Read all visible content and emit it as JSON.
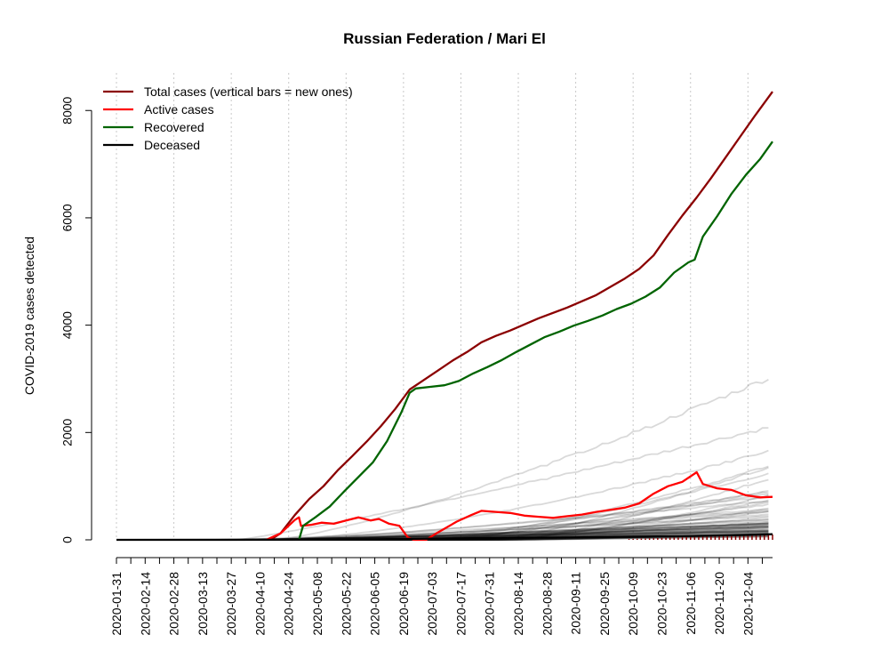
{
  "chart_data": {
    "type": "line",
    "title": "Russian Federation / Mari El",
    "ylabel": "COVID-2019 cases detected",
    "xlabel": "",
    "x_range": [
      "2020-01-31",
      "2020-12-16"
    ],
    "ylim": [
      0,
      8700
    ],
    "y_ticks": [
      0,
      2000,
      4000,
      6000,
      8000
    ],
    "x_ticks": [
      "2020-01-31",
      "2020-02-14",
      "2020-02-28",
      "2020-03-13",
      "2020-03-27",
      "2020-04-10",
      "2020-04-24",
      "2020-05-08",
      "2020-05-22",
      "2020-06-05",
      "2020-06-19",
      "2020-07-03",
      "2020-07-17",
      "2020-07-31",
      "2020-08-14",
      "2020-08-28",
      "2020-09-11",
      "2020-09-25",
      "2020-10-09",
      "2020-10-23",
      "2020-11-06",
      "2020-11-20",
      "2020-12-04"
    ],
    "grid_dates": [
      "2020-01-31",
      "2020-02-28",
      "2020-03-27",
      "2020-04-24",
      "2020-05-22",
      "2020-06-19",
      "2020-07-17",
      "2020-08-14",
      "2020-09-11",
      "2020-10-09",
      "2020-11-06",
      "2020-12-04"
    ],
    "legend": {
      "position": "top-left"
    },
    "series": [
      {
        "name": "Total cases (vertical bars = new ones)",
        "color": "#8b0000",
        "points": [
          [
            "2020-04-15",
            0
          ],
          [
            "2020-04-20",
            120
          ],
          [
            "2020-04-27",
            460
          ],
          [
            "2020-05-04",
            760
          ],
          [
            "2020-05-11",
            1000
          ],
          [
            "2020-05-18",
            1300
          ],
          [
            "2020-05-25",
            1560
          ],
          [
            "2020-06-01",
            1830
          ],
          [
            "2020-06-08",
            2120
          ],
          [
            "2020-06-15",
            2440
          ],
          [
            "2020-06-22",
            2800
          ],
          [
            "2020-06-29",
            2980
          ],
          [
            "2020-07-06",
            3160
          ],
          [
            "2020-07-13",
            3340
          ],
          [
            "2020-07-20",
            3500
          ],
          [
            "2020-07-27",
            3680
          ],
          [
            "2020-08-03",
            3800
          ],
          [
            "2020-08-10",
            3900
          ],
          [
            "2020-08-24",
            4130
          ],
          [
            "2020-09-07",
            4330
          ],
          [
            "2020-09-21",
            4560
          ],
          [
            "2020-10-05",
            4870
          ],
          [
            "2020-10-12",
            5050
          ],
          [
            "2020-10-19",
            5300
          ],
          [
            "2020-10-26",
            5680
          ],
          [
            "2020-11-02",
            6040
          ],
          [
            "2020-11-09",
            6380
          ],
          [
            "2020-11-16",
            6740
          ],
          [
            "2020-11-23",
            7120
          ],
          [
            "2020-11-30",
            7500
          ],
          [
            "2020-12-07",
            7880
          ],
          [
            "2020-12-16",
            8350
          ]
        ]
      },
      {
        "name": "Active cases",
        "color": "#ff0000",
        "points": [
          [
            "2020-04-13",
            0
          ],
          [
            "2020-04-20",
            120
          ],
          [
            "2020-04-27",
            370
          ],
          [
            "2020-04-29",
            420
          ],
          [
            "2020-04-30",
            260
          ],
          [
            "2020-05-05",
            280
          ],
          [
            "2020-05-10",
            320
          ],
          [
            "2020-05-16",
            300
          ],
          [
            "2020-05-22",
            360
          ],
          [
            "2020-05-28",
            420
          ],
          [
            "2020-06-03",
            360
          ],
          [
            "2020-06-07",
            390
          ],
          [
            "2020-06-12",
            300
          ],
          [
            "2020-06-17",
            260
          ],
          [
            "2020-06-21",
            50
          ],
          [
            "2020-06-24",
            0
          ],
          [
            "2020-06-30",
            0
          ],
          [
            "2020-07-05",
            120
          ],
          [
            "2020-07-15",
            340
          ],
          [
            "2020-07-22",
            460
          ],
          [
            "2020-07-27",
            540
          ],
          [
            "2020-08-03",
            520
          ],
          [
            "2020-08-10",
            500
          ],
          [
            "2020-08-17",
            450
          ],
          [
            "2020-08-24",
            430
          ],
          [
            "2020-08-31",
            410
          ],
          [
            "2020-09-07",
            440
          ],
          [
            "2020-09-14",
            470
          ],
          [
            "2020-09-21",
            520
          ],
          [
            "2020-09-28",
            560
          ],
          [
            "2020-10-05",
            600
          ],
          [
            "2020-10-12",
            680
          ],
          [
            "2020-10-19",
            860
          ],
          [
            "2020-10-26",
            1000
          ],
          [
            "2020-11-02",
            1080
          ],
          [
            "2020-11-09",
            1260
          ],
          [
            "2020-11-12",
            1040
          ],
          [
            "2020-11-19",
            960
          ],
          [
            "2020-11-26",
            930
          ],
          [
            "2020-12-03",
            830
          ],
          [
            "2020-12-10",
            790
          ],
          [
            "2020-12-16",
            800
          ]
        ]
      },
      {
        "name": "Recovered",
        "color": "#006400",
        "points": [
          [
            "2020-04-29",
            0
          ],
          [
            "2020-05-01",
            260
          ],
          [
            "2020-05-07",
            420
          ],
          [
            "2020-05-14",
            620
          ],
          [
            "2020-05-21",
            900
          ],
          [
            "2020-05-28",
            1170
          ],
          [
            "2020-06-04",
            1440
          ],
          [
            "2020-06-11",
            1840
          ],
          [
            "2020-06-18",
            2380
          ],
          [
            "2020-06-22",
            2740
          ],
          [
            "2020-06-25",
            2820
          ],
          [
            "2020-07-02",
            2850
          ],
          [
            "2020-07-09",
            2880
          ],
          [
            "2020-07-16",
            2960
          ],
          [
            "2020-07-23",
            3100
          ],
          [
            "2020-07-30",
            3220
          ],
          [
            "2020-08-06",
            3350
          ],
          [
            "2020-08-13",
            3500
          ],
          [
            "2020-08-20",
            3640
          ],
          [
            "2020-08-27",
            3780
          ],
          [
            "2020-09-03",
            3880
          ],
          [
            "2020-09-10",
            3990
          ],
          [
            "2020-09-17",
            4080
          ],
          [
            "2020-09-24",
            4180
          ],
          [
            "2020-10-01",
            4300
          ],
          [
            "2020-10-08",
            4400
          ],
          [
            "2020-10-15",
            4530
          ],
          [
            "2020-10-22",
            4700
          ],
          [
            "2020-10-29",
            4980
          ],
          [
            "2020-11-05",
            5170
          ],
          [
            "2020-11-08",
            5220
          ],
          [
            "2020-11-12",
            5650
          ],
          [
            "2020-11-19",
            6030
          ],
          [
            "2020-11-26",
            6450
          ],
          [
            "2020-12-03",
            6800
          ],
          [
            "2020-12-10",
            7100
          ],
          [
            "2020-12-16",
            7420
          ]
        ]
      },
      {
        "name": "Deceased",
        "color": "#000000",
        "points": [
          [
            "2020-01-31",
            0
          ],
          [
            "2020-05-01",
            2
          ],
          [
            "2020-06-01",
            10
          ],
          [
            "2020-07-01",
            22
          ],
          [
            "2020-08-01",
            34
          ],
          [
            "2020-09-01",
            42
          ],
          [
            "2020-10-01",
            55
          ],
          [
            "2020-11-01",
            68
          ],
          [
            "2020-12-01",
            90
          ],
          [
            "2020-12-16",
            105
          ]
        ]
      }
    ]
  }
}
